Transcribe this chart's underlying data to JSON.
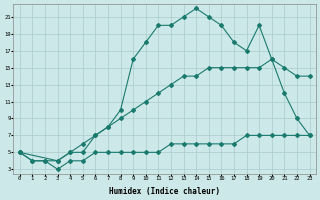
{
  "xlabel": "Humidex (Indice chaleur)",
  "background_color": "#cde8e8",
  "grid_color": "#aacccc",
  "line_color": "#1a7a6e",
  "xlim": [
    -0.5,
    23.5
  ],
  "ylim": [
    2.5,
    22.5
  ],
  "yticks": [
    3,
    5,
    7,
    9,
    11,
    13,
    15,
    17,
    19,
    21
  ],
  "xticks": [
    0,
    1,
    2,
    3,
    4,
    5,
    6,
    7,
    8,
    9,
    10,
    11,
    12,
    13,
    14,
    15,
    16,
    17,
    18,
    19,
    20,
    21,
    22,
    23
  ],
  "curve1_x": [
    0,
    1,
    2,
    3,
    4,
    5,
    6,
    7,
    8,
    9,
    10,
    11,
    12,
    13,
    14,
    15,
    16,
    17,
    18,
    19,
    20,
    21,
    22,
    23
  ],
  "curve1_y": [
    5,
    4,
    4,
    3,
    4,
    4,
    5,
    5,
    5,
    5,
    5,
    5,
    6,
    6,
    6,
    6,
    6,
    6,
    7,
    7,
    7,
    7,
    7,
    7
  ],
  "curve2_x": [
    0,
    3,
    4,
    5,
    6,
    7,
    8,
    9,
    10,
    11,
    12,
    13,
    14,
    15,
    16,
    17,
    18,
    19,
    20,
    21,
    22,
    23
  ],
  "curve2_y": [
    5,
    4,
    5,
    6,
    7,
    8,
    9,
    10,
    11,
    12,
    13,
    14,
    14,
    15,
    15,
    15,
    15,
    15,
    16,
    15,
    14,
    14
  ],
  "curve3_x": [
    0,
    1,
    2,
    3,
    4,
    5,
    6,
    7,
    8,
    9,
    10,
    11,
    12,
    13,
    14,
    15,
    16,
    17,
    18,
    19,
    20,
    21,
    22,
    23
  ],
  "curve3_y": [
    5,
    4,
    4,
    4,
    5,
    5,
    7,
    8,
    10,
    16,
    18,
    20,
    20,
    21,
    22,
    21,
    20,
    18,
    17,
    20,
    16,
    12,
    9,
    7
  ]
}
